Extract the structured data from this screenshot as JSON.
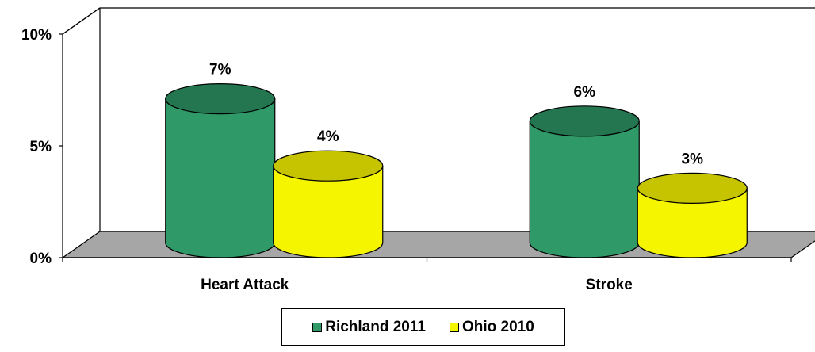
{
  "chart_data": {
    "type": "bar",
    "categories": [
      "Heart Attack",
      "Stroke"
    ],
    "series": [
      {
        "name": "Richland 2011",
        "values": [
          7,
          6
        ],
        "labels": [
          "7%",
          "6%"
        ],
        "color": "#2f9a68",
        "top_color": "#23764f"
      },
      {
        "name": "Ohio 2010",
        "values": [
          4,
          3
        ],
        "labels": [
          "4%",
          "3%"
        ],
        "color": "#f5f500",
        "top_color": "#c6c400"
      }
    ],
    "ylim": [
      0,
      10
    ],
    "yticks": [
      0,
      5,
      10
    ],
    "ytick_labels": [
      "0%",
      "5%",
      "10%"
    ],
    "grid": false,
    "legend_position": "bottom",
    "floor_color": "#a6a6a6"
  }
}
